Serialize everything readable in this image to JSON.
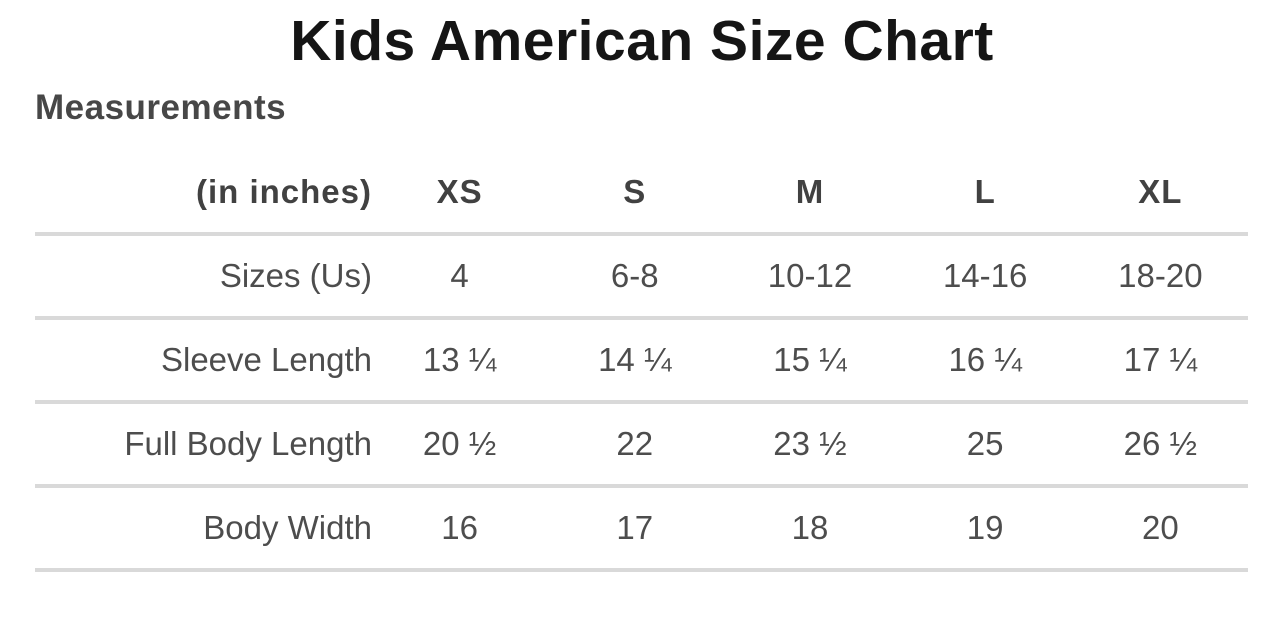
{
  "page": {
    "title": "Kids American Size Chart",
    "section_heading": "Measurements"
  },
  "colors": {
    "title_text": "#151515",
    "heading_text": "#474747",
    "header_text": "#414141",
    "cell_text": "#4d4d4d",
    "divider": "#d9d9d9",
    "background": "#ffffff"
  },
  "chart_data": {
    "type": "table",
    "title": "Kids American Size Chart",
    "unit_label": "(in inches)",
    "columns": [
      "XS",
      "S",
      "M",
      "L",
      "XL"
    ],
    "rows": [
      {
        "label": "Sizes (Us)",
        "values": [
          "4",
          "6-8",
          "10-12",
          "14-16",
          "18-20"
        ]
      },
      {
        "label": "Sleeve Length",
        "values": [
          "13 ¼",
          "14 ¼",
          "15 ¼",
          "16 ¼",
          "17 ¼"
        ]
      },
      {
        "label": "Full Body Length",
        "values": [
          "20 ½",
          "22",
          "23 ½",
          "25",
          "26 ½"
        ]
      },
      {
        "label": "Body Width",
        "values": [
          "16",
          "17",
          "18",
          "19",
          "20"
        ]
      }
    ]
  }
}
